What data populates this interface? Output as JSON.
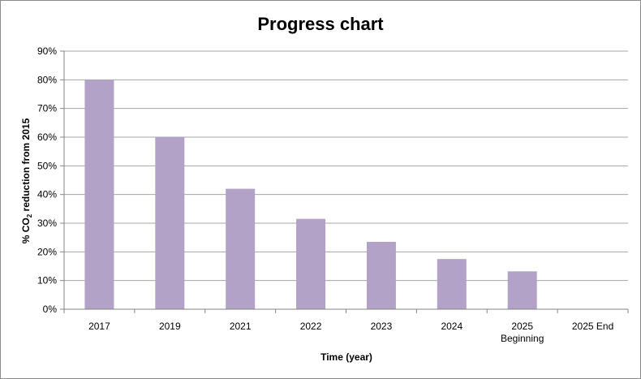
{
  "chart_data": {
    "type": "bar",
    "title": "Progress chart",
    "xlabel": "Time (year)",
    "ylabel": {
      "prefix": "% CO",
      "subscript": "2",
      "suffix": " reduction from 2015"
    },
    "categories": [
      [
        "2017"
      ],
      [
        "2019"
      ],
      [
        "2021"
      ],
      [
        "2022"
      ],
      [
        "2023"
      ],
      [
        "2024"
      ],
      [
        "2025",
        "Beginning"
      ],
      [
        "2025 End"
      ]
    ],
    "values": [
      80,
      60,
      42,
      31.5,
      23.5,
      17.5,
      13.2,
      0
    ],
    "ylim": [
      0,
      90
    ],
    "yticks": [
      "0%",
      "10%",
      "20%",
      "30%",
      "40%",
      "50%",
      "60%",
      "70%",
      "80%",
      "90%"
    ],
    "grid": true,
    "legend": "none",
    "colors": {
      "bar": "#b3a2c7",
      "grid": "#a6a6a6",
      "axis": "#868686"
    }
  }
}
